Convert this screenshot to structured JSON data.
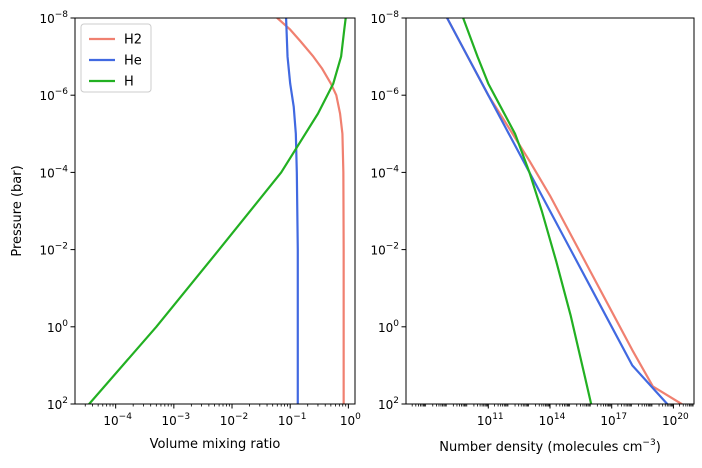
{
  "chart_data": [
    {
      "type": "line",
      "xscale": "log",
      "yscale": "log",
      "y_inverted": true,
      "xlabel": "Volume mixing ratio",
      "ylabel": "Pressure (bar)",
      "xlim": [
        2e-05,
        1.3
      ],
      "ylim": [
        100,
        1e-08
      ],
      "xticks": [
        {
          "value": 0.0001,
          "base": "10",
          "exp": "−4"
        },
        {
          "value": 0.001,
          "base": "10",
          "exp": "−3"
        },
        {
          "value": 0.01,
          "base": "10",
          "exp": "−2"
        },
        {
          "value": 0.1,
          "base": "10",
          "exp": "−1"
        },
        {
          "value": 1,
          "base": "10",
          "exp": "0"
        }
      ],
      "yticks": [
        {
          "value": 1e-08,
          "base": "10",
          "exp": "−8"
        },
        {
          "value": 1e-06,
          "base": "10",
          "exp": "−6"
        },
        {
          "value": 0.0001,
          "base": "10",
          "exp": "−4"
        },
        {
          "value": 0.01,
          "base": "10",
          "exp": "−2"
        },
        {
          "value": 1,
          "base": "10",
          "exp": "0"
        },
        {
          "value": 100,
          "base": "10",
          "exp": "2"
        }
      ],
      "legend": "upper-left",
      "series": [
        {
          "name": "H2",
          "color": "#f08070",
          "points": [
            [
              0.06,
              1e-08
            ],
            [
              0.1,
              2e-08
            ],
            [
              0.15,
              4e-08
            ],
            [
              0.25,
              1e-07
            ],
            [
              0.35,
              2e-07
            ],
            [
              0.5,
              5e-07
            ],
            [
              0.62,
              1e-06
            ],
            [
              0.72,
              3e-06
            ],
            [
              0.79,
              1e-05
            ],
            [
              0.82,
              0.0001
            ],
            [
              0.83,
              0.01
            ],
            [
              0.83,
              1
            ],
            [
              0.83,
              100
            ]
          ]
        },
        {
          "name": "He",
          "color": "#4169e1",
          "points": [
            [
              0.085,
              1e-08
            ],
            [
              0.09,
              1e-07
            ],
            [
              0.1,
              5e-07
            ],
            [
              0.115,
              2e-06
            ],
            [
              0.125,
              1e-05
            ],
            [
              0.13,
              0.0001
            ],
            [
              0.135,
              0.01
            ],
            [
              0.135,
              1
            ],
            [
              0.135,
              100
            ]
          ]
        },
        {
          "name": "H",
          "color": "#22b022",
          "points": [
            [
              3.5e-05,
              100
            ],
            [
              0.0005,
              1
            ],
            [
              0.006,
              0.01
            ],
            [
              0.07,
              0.0001
            ],
            [
              0.3,
              3e-06
            ],
            [
              0.55,
              5e-07
            ],
            [
              0.75,
              1e-07
            ],
            [
              0.85,
              2e-08
            ],
            [
              0.9,
              1e-08
            ]
          ]
        }
      ]
    },
    {
      "type": "line",
      "xscale": "log",
      "yscale": "log",
      "y_inverted": true,
      "xlabel": "Number density (molecules cm",
      "xlabel_sup": "−3",
      "xlabel_end": ")",
      "xlim": [
        10000000.0,
        1e+21
      ],
      "ylim": [
        100,
        1e-08
      ],
      "xticks": [
        {
          "value": 100000000000.0,
          "base": "10",
          "exp": "11"
        },
        {
          "value": 100000000000000.0,
          "base": "10",
          "exp": "14"
        },
        {
          "value": 1e+17,
          "base": "10",
          "exp": "17"
        },
        {
          "value": 1e+20,
          "base": "10",
          "exp": "20"
        }
      ],
      "yticks": [
        {
          "value": 1e-08,
          "base": "10",
          "exp": "−8"
        },
        {
          "value": 1e-06,
          "base": "10",
          "exp": "−6"
        },
        {
          "value": 0.0001,
          "base": "10",
          "exp": "−4"
        },
        {
          "value": 0.01,
          "base": "10",
          "exp": "−2"
        },
        {
          "value": 1,
          "base": "10",
          "exp": "0"
        },
        {
          "value": 100,
          "base": "10",
          "exp": "2"
        }
      ],
      "series": [
        {
          "name": "H2",
          "color": "#f08070",
          "points": [
            [
              1000000000.0,
              1e-08
            ],
            [
              10000000000.0,
              1e-07
            ],
            [
              100000000000.0,
              1e-06
            ],
            [
              1000000000000.0,
              7e-06
            ],
            [
              10000000000000.0,
              5e-05
            ],
            [
              100000000000000.0,
              0.0004
            ],
            [
              1000000000000000.0,
              0.004
            ],
            [
              1e+16,
              0.04
            ],
            [
              1e+17,
              0.4
            ],
            [
              1e+18,
              4
            ],
            [
              1e+19,
              35
            ],
            [
              2.5e+20,
              100
            ]
          ]
        },
        {
          "name": "He",
          "color": "#4169e1",
          "points": [
            [
              1000000000.0,
              1e-08
            ],
            [
              10000000000.0,
              1e-07
            ],
            [
              100000000000.0,
              1e-06
            ],
            [
              1000000000000.0,
              1e-05
            ],
            [
              10000000000000.0,
              0.0001
            ],
            [
              100000000000000.0,
              0.001
            ],
            [
              1000000000000000.0,
              0.01
            ],
            [
              1e+16,
              0.1
            ],
            [
              1e+17,
              1
            ],
            [
              1e+18,
              10
            ],
            [
              5e+19,
              100
            ]
          ]
        },
        {
          "name": "H",
          "color": "#22b022",
          "points": [
            [
              6000000000.0,
              1e-08
            ],
            [
              30000000000.0,
              1e-07
            ],
            [
              100000000000.0,
              5e-07
            ],
            [
              400000000000.0,
              2e-06
            ],
            [
              2000000000000.0,
              1e-05
            ],
            [
              10000000000000.0,
              0.0001
            ],
            [
              40000000000000.0,
              0.001
            ],
            [
              200000000000000.0,
              0.02
            ],
            [
              1000000000000000.0,
              0.5
            ],
            [
              5000000000000000.0,
              20
            ],
            [
              1e+16,
              100
            ]
          ]
        }
      ]
    }
  ]
}
